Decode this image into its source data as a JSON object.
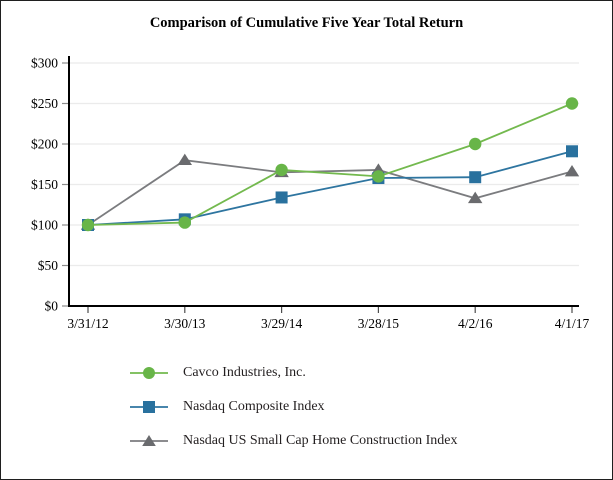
{
  "title": "Comparison of Cumulative Five Year Total Return",
  "chart_data": {
    "type": "line",
    "title": "Comparison of Cumulative Five Year Total Return",
    "x": [
      "3/31/12",
      "3/30/13",
      "3/29/14",
      "3/28/15",
      "4/2/16",
      "4/1/17"
    ],
    "series": [
      {
        "name": "Cavco Industries, Inc.",
        "marker": "circle",
        "line_color": "#73b94e",
        "marker_color": "#68b548",
        "values": [
          100,
          103,
          168,
          160,
          200,
          250
        ]
      },
      {
        "name": "Nasdaq Composite Index",
        "marker": "square",
        "line_color": "#2e75a0",
        "marker_color": "#29719e",
        "values": [
          100,
          107,
          134,
          158,
          159,
          191
        ]
      },
      {
        "name": "Nasdaq US Small Cap Home Construction Index",
        "marker": "triangle",
        "line_color": "#7b7c7f",
        "marker_color": "#6a6b6e",
        "values": [
          100,
          180,
          165,
          168,
          133,
          166
        ]
      }
    ],
    "y_ticks": [
      {
        "label": "$0",
        "value": 0
      },
      {
        "label": "$50",
        "value": 50
      },
      {
        "label": "$100",
        "value": 100
      },
      {
        "label": "$150",
        "value": 150
      },
      {
        "label": "$200",
        "value": 200
      },
      {
        "label": "$250",
        "value": 250
      },
      {
        "label": "$300",
        "value": 300
      }
    ],
    "ylim": [
      0,
      300
    ],
    "xlabel": "",
    "ylabel": "",
    "grid": "horizontal",
    "gridline_color": "#ebebeb",
    "axis_color": "#000000",
    "tick_color": "#8c8c8c",
    "legend_position": "bottom-left"
  }
}
